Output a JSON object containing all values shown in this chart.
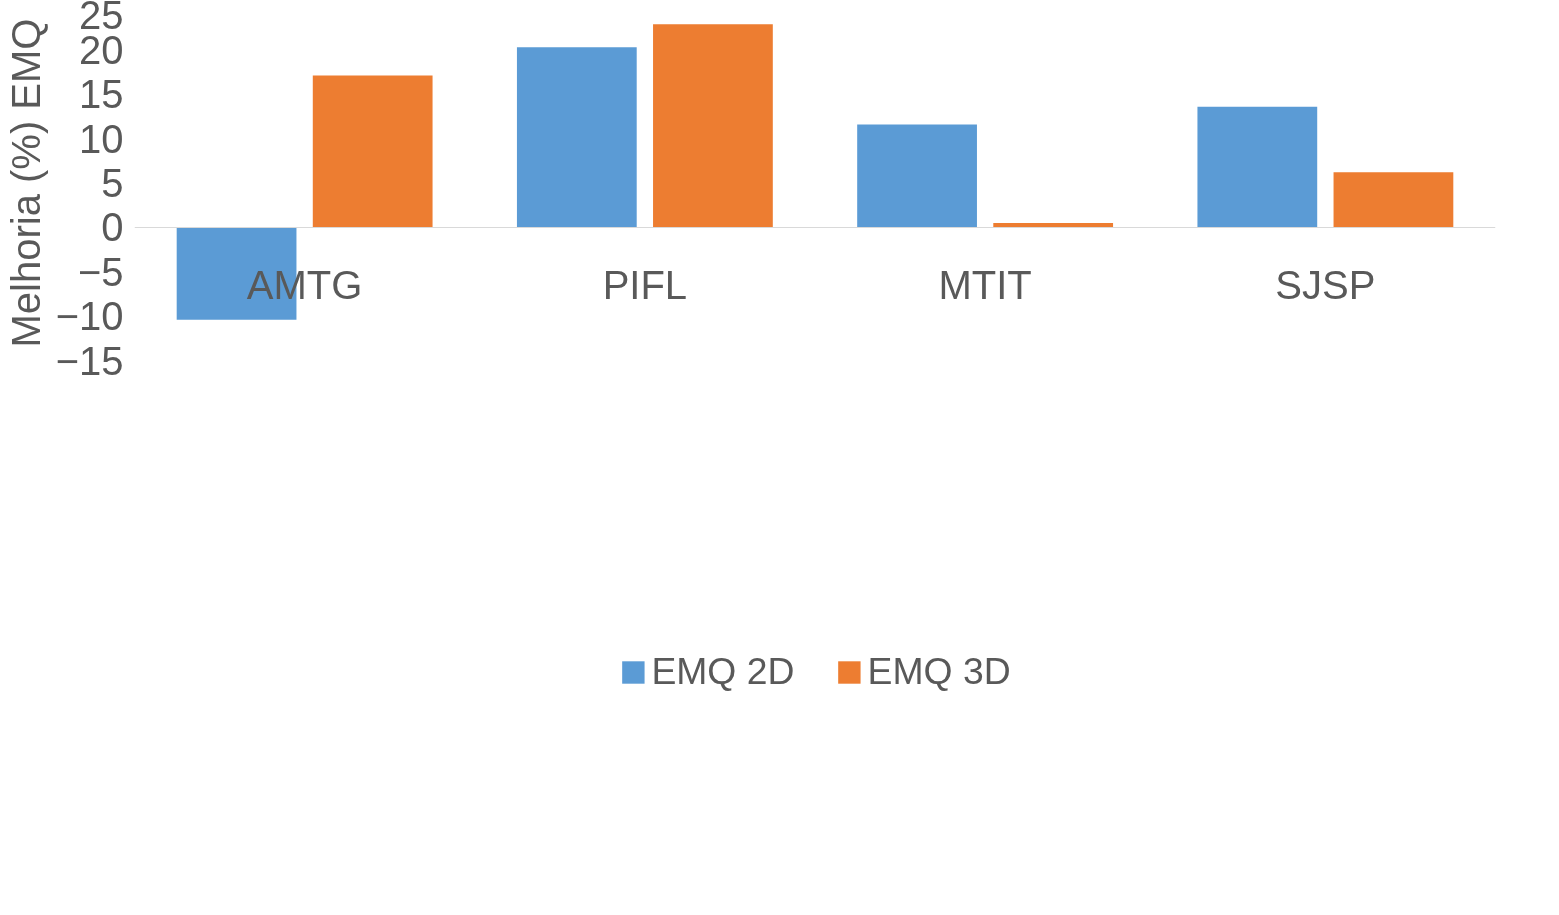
{
  "chart_data": {
    "type": "bar",
    "ylabel": "Melhoria (%) EMQ",
    "categories": [
      "AMTG",
      "PIFL",
      "MTIT",
      "SJSP"
    ],
    "series": [
      {
        "name": "EMQ 2D",
        "color": "#5b9bd5",
        "values": [
          -10.4,
          20.3,
          11.6,
          13.6
        ]
      },
      {
        "name": "EMQ 3D",
        "color": "#ed7d31",
        "values": [
          17.1,
          22.9,
          0.5,
          6.2
        ]
      }
    ],
    "ylim": [
      -15,
      25
    ],
    "yticks": [
      -15,
      -10,
      -5,
      0,
      5,
      10,
      15,
      20,
      25
    ],
    "grid": false,
    "legend": "bottom"
  }
}
